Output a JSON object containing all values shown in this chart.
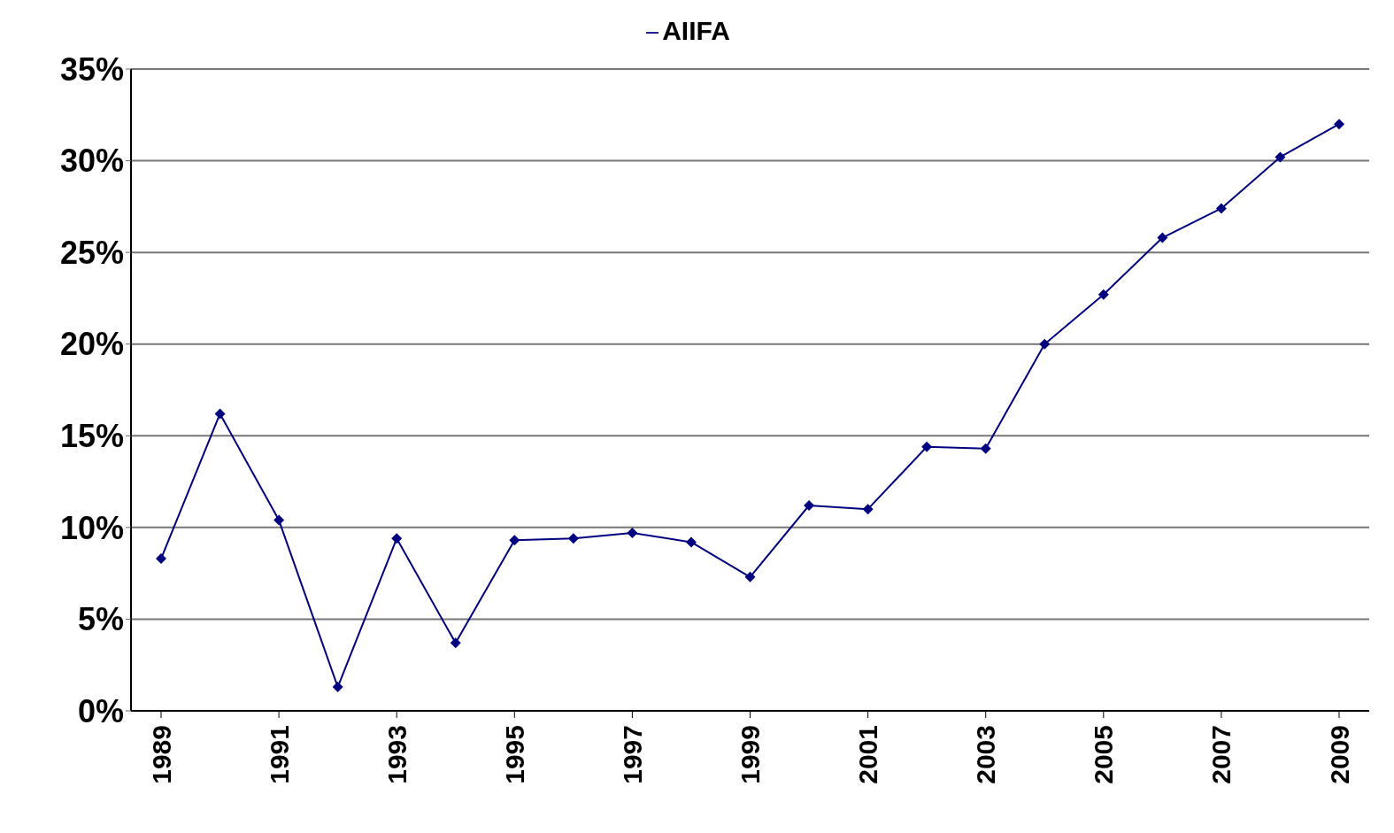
{
  "chart_data": {
    "type": "line",
    "categories": [
      "1989",
      null,
      "1991",
      null,
      "1993",
      null,
      "1995",
      null,
      "1997",
      null,
      "1999",
      null,
      "2001",
      null,
      "2003",
      null,
      "2005",
      null,
      "2007",
      null,
      "2009"
    ],
    "series": [
      {
        "name": "AIIFA",
        "color": "#000080",
        "values": [
          8.3,
          16.2,
          10.4,
          1.3,
          9.4,
          3.7,
          9.3,
          9.4,
          9.7,
          9.2,
          7.3,
          11.2,
          11.0,
          14.4,
          14.3,
          20.0,
          22.7,
          25.8,
          27.4,
          30.2,
          32.0
        ]
      }
    ],
    "ylim": [
      0,
      35
    ],
    "yticks": [
      {
        "value": 0,
        "label": "0%"
      },
      {
        "value": 5,
        "label": "5%"
      },
      {
        "value": 10,
        "label": "10%"
      },
      {
        "value": 15,
        "label": "15%"
      },
      {
        "value": 20,
        "label": "20%"
      },
      {
        "value": 25,
        "label": "25%"
      },
      {
        "value": 30,
        "label": "30%"
      },
      {
        "value": 35,
        "label": "35%"
      }
    ],
    "grid": "y",
    "legend": "top",
    "marker": "diamond",
    "line_style": "solid"
  }
}
